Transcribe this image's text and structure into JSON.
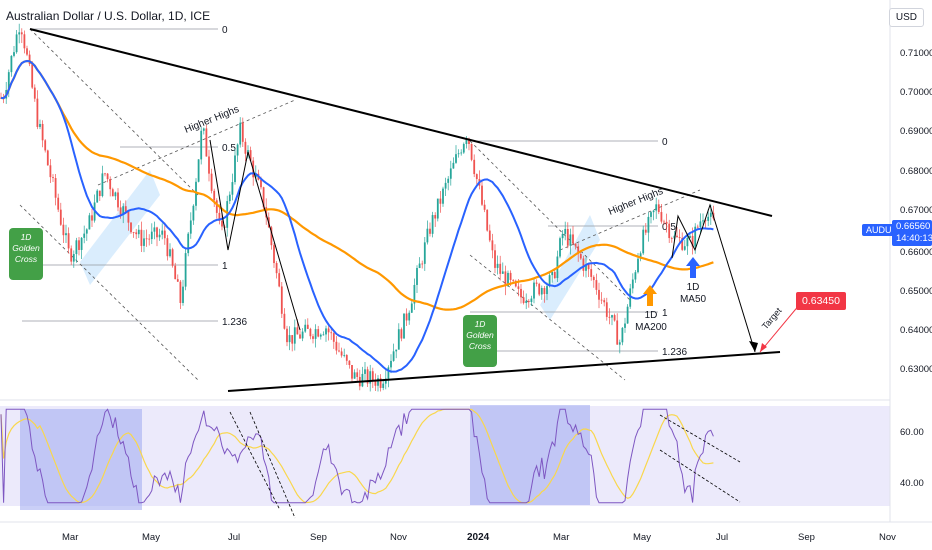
{
  "header": {
    "title": "Australian Dollar / U.S. Dollar, 1D, ICE",
    "currency_button": "USD"
  },
  "price_axis": {
    "ticks": [
      "0.71000",
      "0.70000",
      "0.69000",
      "0.68000",
      "0.67000",
      "0.66000",
      "0.65000",
      "0.64000",
      "0.63000"
    ]
  },
  "rsi_axis": {
    "ticks": [
      "60.00",
      "40.00"
    ]
  },
  "time_axis": {
    "ticks": [
      "Mar",
      "May",
      "Jul",
      "Sep",
      "Nov",
      "2024",
      "Mar",
      "May",
      "Jul",
      "Sep",
      "Nov"
    ]
  },
  "symbol_badge": {
    "symbol": "AUDUSD",
    "price": "0.66560",
    "countdown": "14:40:13",
    "color": "#2962ff"
  },
  "target_badge": {
    "price": "0.63450",
    "color": "#f23645"
  },
  "annotations": {
    "golden_cross_left": "1D\nGolden\nCross",
    "golden_cross_mid": "1D\nGolden\nCross",
    "higher_highs_1": "Higher Highs",
    "higher_highs_2": "Higher Highs",
    "fib_0_left": "0",
    "fib_05_left": "0.5",
    "fib_1_left": "1",
    "fib_1236_left": "1.236",
    "fib_0_right": "0",
    "fib_05_right": "0.5",
    "fib_1_right": "1",
    "fib_1236_right": "1.236",
    "ma200_label": "1D\nMA200",
    "ma50_label": "1D\nMA50",
    "target_label": "Target"
  },
  "colors": {
    "up": "#26a69a",
    "down": "#ef5350",
    "ma50": "#2962ff",
    "ma200": "#ff9800",
    "rsi": "#7e57c2",
    "rsi_ma": "#f9d74c",
    "green_label": "#43a047",
    "arrow_orange": "#ff9800",
    "arrow_blue": "#2962ff"
  },
  "chart_data": {
    "type": "candlestick",
    "symbol": "AUDUSD",
    "timeframe": "1D",
    "y_range": [
      0.6233,
      0.7195
    ],
    "close_path": [
      [
        "2023-01-20",
        0.696
      ],
      [
        "2023-02-02",
        0.715
      ],
      [
        "2023-02-15",
        0.69
      ],
      [
        "2023-03-10",
        0.658
      ],
      [
        "2023-03-24",
        0.665
      ],
      [
        "2023-04-05",
        0.678
      ],
      [
        "2023-04-20",
        0.668
      ],
      [
        "2023-05-01",
        0.662
      ],
      [
        "2023-05-19",
        0.663
      ],
      [
        "2023-05-31",
        0.647
      ],
      [
        "2023-06-16",
        0.689
      ],
      [
        "2023-06-30",
        0.662
      ],
      [
        "2023-07-14",
        0.688
      ],
      [
        "2023-08-01",
        0.67
      ],
      [
        "2023-08-18",
        0.638
      ],
      [
        "2023-09-15",
        0.641
      ],
      [
        "2023-10-05",
        0.629
      ],
      [
        "2023-10-26",
        0.628
      ],
      [
        "2023-11-13",
        0.643
      ],
      [
        "2023-12-01",
        0.665
      ],
      [
        "2023-12-28",
        0.688
      ],
      [
        "2024-01-17",
        0.656
      ],
      [
        "2024-02-05",
        0.648
      ],
      [
        "2024-02-29",
        0.652
      ],
      [
        "2024-03-08",
        0.664
      ],
      [
        "2024-04-01",
        0.651
      ],
      [
        "2024-04-19",
        0.637
      ],
      [
        "2024-05-03",
        0.66
      ],
      [
        "2024-05-16",
        0.67
      ],
      [
        "2024-05-29",
        0.662
      ],
      [
        "2024-06-10",
        0.661
      ],
      [
        "2024-06-20",
        0.669
      ],
      [
        "2024-06-26",
        0.6656
      ]
    ],
    "last_price": 0.6656,
    "target": 0.6345
  }
}
